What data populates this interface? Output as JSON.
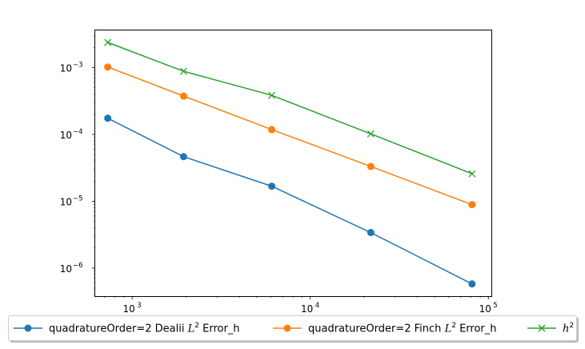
{
  "chart_data": {
    "type": "line",
    "xscale": "log",
    "yscale": "log",
    "xlim": [
      620,
      104000
    ],
    "ylim": [
      3.8e-07,
      0.0036
    ],
    "x_ticks": [
      {
        "value": 1000,
        "label": "10",
        "exp": "3"
      },
      {
        "value": 10000,
        "label": "10",
        "exp": "4"
      },
      {
        "value": 100000,
        "label": "10",
        "exp": "5"
      }
    ],
    "y_ticks": [
      {
        "value": 0.001,
        "label": "10",
        "exp": "−3"
      },
      {
        "value": 0.0001,
        "label": "10",
        "exp": "−4"
      },
      {
        "value": 1e-05,
        "label": "10",
        "exp": "−5"
      },
      {
        "value": 1e-06,
        "label": "10",
        "exp": "−6"
      }
    ],
    "grid": false,
    "legend_position": "bottom",
    "x": [
      729,
      1944,
      6075,
      21870,
      81000
    ],
    "series": [
      {
        "name": "quadratureOrder=2 Dealii L^2 Error_h",
        "color": "#1f77b4",
        "marker": "circle",
        "values": [
          0.000175,
          4.65e-05,
          1.68e-05,
          3.4e-06,
          5.8e-07
        ]
      },
      {
        "name": "quadratureOrder=2 Finch L^2 Error_h",
        "color": "#ff7f0e",
        "marker": "circle",
        "values": [
          0.00102,
          0.000375,
          0.000118,
          3.32e-05,
          8.9e-06
        ]
      },
      {
        "name": "h^2",
        "color": "#2ca02c",
        "marker": "x",
        "values": [
          0.00238,
          0.00088,
          0.000385,
          0.000102,
          2.58e-05
        ]
      }
    ]
  },
  "legend": {
    "items": [
      {
        "prefix": "quadratureOrder=2 Dealii ",
        "sym": "L",
        "sup": "2",
        "suffix": " Error_h",
        "color": "#1f77b4",
        "marker": "circle"
      },
      {
        "prefix": "quadratureOrder=2 Finch ",
        "sym": "L",
        "sup": "2",
        "suffix": " Error_h",
        "color": "#ff7f0e",
        "marker": "circle"
      },
      {
        "prefix": "",
        "sym": "h",
        "sup": "2",
        "suffix": "",
        "color": "#2ca02c",
        "marker": "x"
      }
    ]
  }
}
